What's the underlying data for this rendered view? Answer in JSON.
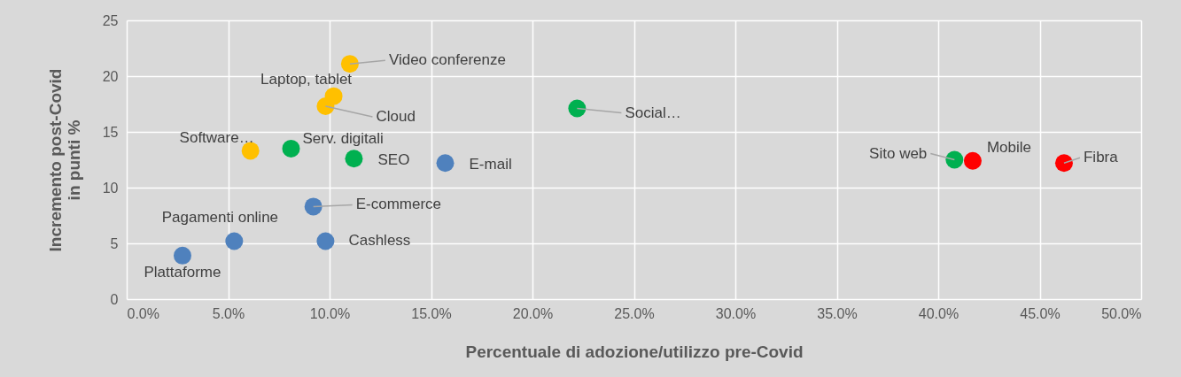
{
  "chart_data": {
    "type": "scatter",
    "xlabel": "Percentuale di adozione/utilizzo pre-Covid",
    "ylabel": "Incremento post-Covid in punti %",
    "x": [
      2.75,
      5.3,
      9.8,
      9.2,
      15.7,
      6.1,
      8.1,
      11.2,
      9.8,
      10.2,
      11.0,
      22.2,
      40.8,
      41.7,
      46.2
    ],
    "values": [
      3.9,
      5.2,
      5.2,
      8.3,
      12.2,
      13.3,
      13.5,
      12.6,
      17.3,
      18.2,
      21.1,
      17.1,
      12.5,
      12.4,
      12.2
    ],
    "colors": [
      "#4f81bd",
      "#4f81bd",
      "#4f81bd",
      "#4f81bd",
      "#4f81bd",
      "#ffc000",
      "#00b050",
      "#00b050",
      "#ffc000",
      "#ffc000",
      "#ffc000",
      "#00b050",
      "#00b050",
      "#ff0000",
      "#ff0000"
    ],
    "annotations": [
      {
        "text": "Plattaforme",
        "x": 2.75,
        "y": 3.9
      },
      {
        "text": "Pagamenti online",
        "x": 5.3,
        "y": 5.2
      },
      {
        "text": "Cashless",
        "x": 9.8,
        "y": 5.2
      },
      {
        "text": "E-commerce",
        "x": 9.2,
        "y": 8.3
      },
      {
        "text": "E-mail",
        "x": 15.7,
        "y": 12.2
      },
      {
        "text": "Software…",
        "x": 6.1,
        "y": 13.3
      },
      {
        "text": "Serv. digitali",
        "x": 8.1,
        "y": 13.5
      },
      {
        "text": "SEO",
        "x": 11.2,
        "y": 12.6
      },
      {
        "text": "Cloud",
        "x": 9.8,
        "y": 17.3
      },
      {
        "text": "Laptop, tablet",
        "x": 10.2,
        "y": 18.2
      },
      {
        "text": "Video conferenze",
        "x": 11.0,
        "y": 21.1
      },
      {
        "text": "Social…",
        "x": 22.2,
        "y": 17.1
      },
      {
        "text": "Sito web",
        "x": 40.8,
        "y": 12.5
      },
      {
        "text": "Mobile",
        "x": 41.7,
        "y": 12.4
      },
      {
        "text": "Fibra",
        "x": 46.2,
        "y": 12.2
      }
    ],
    "xlim": [
      0,
      50
    ],
    "xticks": [
      {
        "value": 0,
        "label": "0.0%"
      },
      {
        "value": 5,
        "label": "5.0%"
      },
      {
        "value": 10,
        "label": "10.0%"
      },
      {
        "value": 15,
        "label": "15.0%"
      },
      {
        "value": 20,
        "label": "20.0%"
      },
      {
        "value": 25,
        "label": "25.0%"
      },
      {
        "value": 30,
        "label": "30.0%"
      },
      {
        "value": 35,
        "label": "35.0%"
      },
      {
        "value": 40,
        "label": "40.0%"
      },
      {
        "value": 45,
        "label": "45.0%"
      },
      {
        "value": 50,
        "label": "50.0%"
      }
    ],
    "ylim": [
      0,
      25
    ],
    "yticks": [
      0,
      5,
      10,
      15,
      20,
      25
    ],
    "grid": true,
    "marker": "circle"
  }
}
